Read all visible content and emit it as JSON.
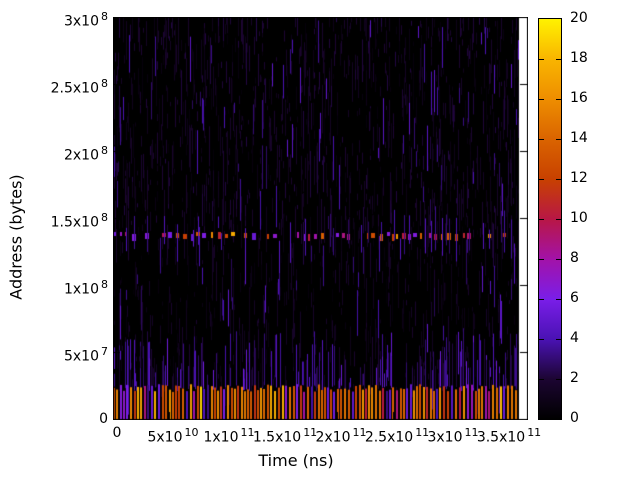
{
  "chart_data": {
    "type": "heatmap",
    "title": "",
    "xlabel": "Time (ns)",
    "ylabel": "Address (bytes)",
    "xlim": [
      0,
      370000000000.0
    ],
    "ylim": [
      0,
      300000000.0
    ],
    "data_time_range_ns": [
      0,
      362000000000.0
    ],
    "grid": false,
    "legend_position": "colorbar-right",
    "xticks": [
      {
        "value": 0,
        "label": "0",
        "sup": ""
      },
      {
        "value": 50000000000.0,
        "label": "5x10",
        "sup": "10"
      },
      {
        "value": 100000000000.0,
        "label": "1x10",
        "sup": "11"
      },
      {
        "value": 150000000000.0,
        "label": "1.5x10",
        "sup": "11"
      },
      {
        "value": 200000000000.0,
        "label": "2x10",
        "sup": "11"
      },
      {
        "value": 250000000000.0,
        "label": "2.5x10",
        "sup": "11"
      },
      {
        "value": 300000000000.0,
        "label": "3x10",
        "sup": "11"
      },
      {
        "value": 350000000000.0,
        "label": "3.5x10",
        "sup": "11"
      }
    ],
    "yticks": [
      {
        "value": 0,
        "label": "0",
        "sup": ""
      },
      {
        "value": 50000000.0,
        "label": "5x10",
        "sup": "7"
      },
      {
        "value": 100000000.0,
        "label": "1x10",
        "sup": "8"
      },
      {
        "value": 150000000.0,
        "label": "1.5x10",
        "sup": "8"
      },
      {
        "value": 200000000.0,
        "label": "2x10",
        "sup": "8"
      },
      {
        "value": 250000000.0,
        "label": "2.5x10",
        "sup": "8"
      },
      {
        "value": 300000000.0,
        "label": "3x10",
        "sup": "8"
      }
    ],
    "colorbar": {
      "min": 0,
      "max": 20,
      "tick_values": [
        0,
        2,
        4,
        6,
        8,
        10,
        12,
        14,
        16,
        18,
        20
      ],
      "tick_labels": [
        "0",
        "2",
        "4",
        "6",
        "8",
        "10",
        "12",
        "14",
        "16",
        "18",
        "20"
      ],
      "palette_stops": [
        [
          0.0,
          "#000000"
        ],
        [
          0.1,
          "#1c0532"
        ],
        [
          0.2,
          "#4a12b4"
        ],
        [
          0.3,
          "#7a1ee8"
        ],
        [
          0.4,
          "#a312a8"
        ],
        [
          0.5,
          "#b81745"
        ],
        [
          0.6,
          "#c84100"
        ],
        [
          0.7,
          "#da6400"
        ],
        [
          0.8,
          "#ee8e00"
        ],
        [
          0.9,
          "#f9b500"
        ],
        [
          1.0,
          "#fff200"
        ]
      ]
    },
    "features": [
      {
        "name": "hot_band",
        "type": "horizontal-dashed-band",
        "address_bytes": 137000000.0,
        "time_range_ns": [
          0,
          362000000000.0
        ],
        "value_range": [
          5,
          18
        ]
      },
      {
        "name": "hot_base_stripes",
        "type": "dense-vertical-bars",
        "address_range_bytes": [
          0,
          16000000.0
        ],
        "time_range_ns": [
          0,
          360000000000.0
        ],
        "value_range": [
          3,
          19
        ]
      },
      {
        "name": "sparse_access_streaks",
        "type": "thin-vertical-streaks",
        "address_range_bytes": [
          0,
          300000000.0
        ],
        "value_range": [
          0.3,
          6
        ]
      }
    ],
    "render_seed": 1234567
  }
}
